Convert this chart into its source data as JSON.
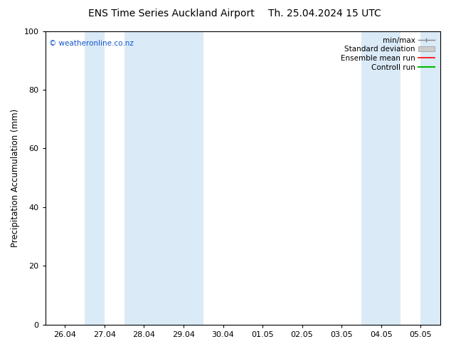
{
  "title_left": "ENS Time Series Auckland Airport",
  "title_right": "Th. 25.04.2024 15 UTC",
  "ylabel": "Precipitation Accumulation (mm)",
  "ylim": [
    0,
    100
  ],
  "yticks": [
    0,
    20,
    40,
    60,
    80,
    100
  ],
  "x_tick_labels": [
    "26.04",
    "27.04",
    "28.04",
    "29.04",
    "30.04",
    "01.05",
    "02.05",
    "03.05",
    "04.05",
    "05.05"
  ],
  "x_tick_positions": [
    0,
    1,
    2,
    3,
    4,
    5,
    6,
    7,
    8,
    9
  ],
  "xlim": [
    -0.5,
    9.5
  ],
  "shade_bands": [
    [
      0.5,
      1.0
    ],
    [
      1.5,
      3.5
    ],
    [
      7.5,
      8.5
    ],
    [
      9.0,
      9.5
    ]
  ],
  "shade_color": "#daeaf7",
  "background_color": "#ffffff",
  "plot_bg_color": "#ffffff",
  "watermark": "© weatheronline.co.nz",
  "watermark_color": "#1155cc",
  "legend_labels": [
    "min/max",
    "Standard deviation",
    "Ensemble mean run",
    "Controll run"
  ],
  "legend_colors": [
    "#aaaaaa",
    "#cccccc",
    "#ff0000",
    "#00bb00"
  ],
  "title_fontsize": 10,
  "axis_fontsize": 8.5,
  "tick_fontsize": 8,
  "legend_fontsize": 7.5
}
